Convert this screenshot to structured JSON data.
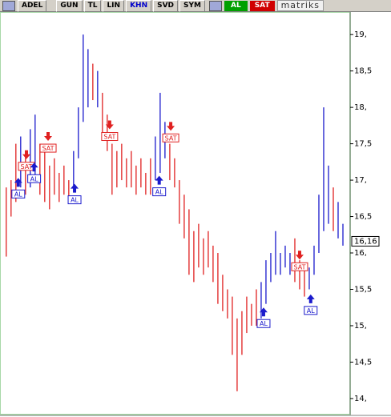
{
  "toolbar": {
    "symbol": "ADEL",
    "buttons": [
      "GUN",
      "TL",
      "LIN",
      "KHN",
      "SVD",
      "SYM"
    ],
    "buy": "AL",
    "sell": "SAT",
    "brand": "matriks"
  },
  "chart_data": {
    "type": "range_bar",
    "x": [
      0,
      1,
      2,
      3,
      4,
      5,
      6,
      7,
      8,
      9,
      10,
      11,
      12,
      13,
      14,
      15,
      16,
      17,
      18,
      19,
      20,
      21,
      22,
      23,
      24,
      25,
      26,
      27,
      28,
      29,
      30,
      31,
      32,
      33,
      34,
      35,
      36,
      37,
      38,
      39,
      40,
      41,
      42,
      43,
      44,
      45,
      46,
      47,
      48,
      49,
      50,
      51,
      52,
      53,
      54,
      55,
      56,
      57,
      58,
      59,
      60,
      61,
      62,
      63,
      64,
      65,
      66,
      67,
      68,
      69,
      70
    ],
    "high": [
      16.9,
      17.0,
      17.5,
      17.6,
      17.4,
      17.7,
      17.9,
      17.5,
      17.4,
      17.2,
      17.3,
      17.1,
      17.2,
      17.0,
      17.4,
      18.0,
      19.0,
      18.8,
      18.6,
      18.5,
      18.2,
      17.9,
      17.5,
      17.4,
      17.5,
      17.3,
      17.4,
      17.2,
      17.3,
      17.1,
      17.3,
      17.6,
      18.2,
      17.8,
      17.5,
      17.3,
      17.0,
      16.8,
      16.6,
      16.3,
      16.4,
      16.2,
      16.3,
      16.1,
      16.0,
      15.7,
      15.5,
      15.4,
      15.1,
      15.2,
      15.4,
      15.3,
      15.5,
      15.6,
      15.9,
      16.0,
      16.3,
      16.0,
      16.1,
      16.0,
      16.2,
      15.9,
      15.8,
      15.8,
      16.1,
      16.8,
      18.0,
      17.2,
      16.9,
      16.7,
      16.4
    ],
    "low": [
      15.95,
      16.5,
      16.7,
      16.9,
      16.8,
      16.9,
      17.0,
      16.8,
      16.7,
      16.6,
      16.8,
      16.7,
      16.8,
      16.7,
      16.9,
      17.3,
      17.8,
      18.0,
      18.1,
      18.0,
      17.6,
      17.4,
      16.8,
      16.9,
      17.0,
      16.9,
      16.9,
      16.8,
      16.9,
      16.8,
      16.8,
      17.0,
      17.1,
      17.3,
      17.0,
      16.9,
      16.4,
      16.2,
      15.7,
      15.6,
      15.8,
      15.7,
      15.8,
      15.6,
      15.3,
      15.2,
      15.1,
      14.6,
      14.1,
      14.6,
      14.9,
      15.0,
      15.0,
      15.1,
      15.3,
      15.6,
      15.7,
      15.7,
      15.8,
      15.7,
      15.6,
      15.5,
      15.4,
      15.5,
      15.7,
      16.0,
      16.3,
      16.4,
      16.3,
      16.2,
      16.1
    ],
    "direction": [
      "down",
      "down",
      "down",
      "up",
      "down",
      "up",
      "up",
      "down",
      "down",
      "down",
      "down",
      "down",
      "down",
      "down",
      "up",
      "up",
      "up",
      "up",
      "down",
      "up",
      "down",
      "down",
      "down",
      "down",
      "down",
      "down",
      "down",
      "down",
      "down",
      "down",
      "down",
      "up",
      "up",
      "up",
      "down",
      "down",
      "down",
      "down",
      "down",
      "down",
      "down",
      "down",
      "down",
      "down",
      "down",
      "down",
      "down",
      "down",
      "down",
      "down",
      "down",
      "down",
      "down",
      "up",
      "up",
      "up",
      "up",
      "up",
      "up",
      "up",
      "down",
      "down",
      "down",
      "up",
      "up",
      "up",
      "up",
      "up",
      "down",
      "up",
      "up"
    ],
    "colors": {
      "up": "#1a1acc",
      "down": "#e02020"
    },
    "xlim": [
      -0.8,
      71.5
    ],
    "ylim": [
      13.79,
      19.31
    ],
    "yticks": [
      {
        "value": 19,
        "label": "19,"
      },
      {
        "value": 18.5,
        "label": "18,5"
      },
      {
        "value": 18,
        "label": "18,"
      },
      {
        "value": 17.5,
        "label": "17,5"
      },
      {
        "value": 17,
        "label": "17,"
      },
      {
        "value": 16.5,
        "label": "16,5"
      },
      {
        "value": 16,
        "label": "16,"
      },
      {
        "value": 15.5,
        "label": "15,5"
      },
      {
        "value": 15,
        "label": "15,"
      },
      {
        "value": 14.5,
        "label": "14,5"
      },
      {
        "value": 14,
        "label": "14,"
      }
    ],
    "last_price": {
      "value": 16.16,
      "label": "16,16"
    },
    "signals": [
      {
        "label": "AL",
        "x": 2.5,
        "y": 16.81
      },
      {
        "label": "SAT",
        "x": 4.2,
        "y": 17.19
      },
      {
        "label": "AL",
        "x": 5.8,
        "y": 17.02
      },
      {
        "label": "SAT",
        "x": 8.7,
        "y": 17.44
      },
      {
        "label": "AL",
        "x": 14.2,
        "y": 16.73
      },
      {
        "label": "SAT",
        "x": 21.5,
        "y": 17.6
      },
      {
        "label": "AL",
        "x": 31.8,
        "y": 16.84
      },
      {
        "label": "SAT",
        "x": 34.2,
        "y": 17.58
      },
      {
        "label": "AL",
        "x": 53.5,
        "y": 15.03
      },
      {
        "label": "SAT",
        "x": 61,
        "y": 15.81
      },
      {
        "label": "AL",
        "x": 63.3,
        "y": 15.21
      }
    ]
  }
}
